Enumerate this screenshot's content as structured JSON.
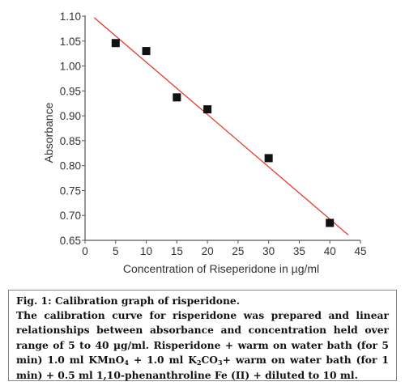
{
  "chart_data": {
    "type": "scatter",
    "title": "",
    "xlabel": "Concentration of Riseperidone in µg/ml",
    "ylabel": "Absorbance",
    "xlim": [
      0,
      45
    ],
    "ylim": [
      0.65,
      1.1
    ],
    "x_ticks": [
      "0",
      "5",
      "10",
      "15",
      "20",
      "25",
      "30",
      "35",
      "40",
      "45"
    ],
    "y_ticks": [
      "0.65",
      "0.70",
      "0.75",
      "0.80",
      "0.85",
      "0.90",
      "0.95",
      "1.00",
      "1.05",
      "1.10"
    ],
    "points": [
      {
        "x": 5,
        "y": 1.046
      },
      {
        "x": 10,
        "y": 1.03
      },
      {
        "x": 15,
        "y": 0.937
      },
      {
        "x": 20,
        "y": 0.913
      },
      {
        "x": 30,
        "y": 0.815
      },
      {
        "x": 40,
        "y": 0.685
      }
    ],
    "trendline": {
      "x": [
        1.5,
        43
      ],
      "y": [
        1.097,
        0.661
      ]
    },
    "grid": false,
    "colors": {
      "marker": "#111111",
      "trendline": "#e03c31",
      "axis": "#555555"
    }
  },
  "caption": {
    "title": "Fig. 1: Calibration graph of risperidone.",
    "line1": "The calibration curve for risperidone was prepared and linear relationships between absorbance and concentration held over range of 5 to 40 µg/ml. Risperidone + warm on water bath (for 5 min) 1.0 ml KMnO",
    "sub1": "4",
    "line2": " + 1.0 ml K",
    "sub2": "2",
    "line3": "CO",
    "sub3": "3",
    "line4": "+ warm on water bath (for 1 min) + 0.5 ml 1,10-phenanthroline Fe (II) + diluted to 10 ml."
  }
}
